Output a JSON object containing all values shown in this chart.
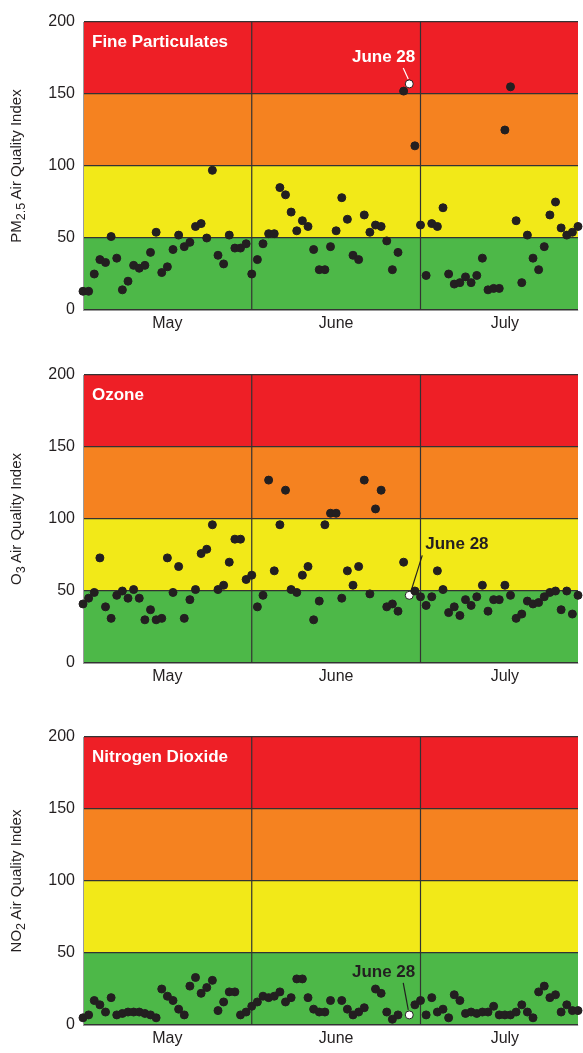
{
  "chart_data": [
    {
      "type": "scatter",
      "grid": "y",
      "title": "Fine Particulates",
      "ylabel": "PM$_{2.5}$ Air Quality Index",
      "marker": "circle",
      "x": [
        "--05-01",
        "--05-02",
        "--05-03",
        "--05-04",
        "--05-05",
        "--05-06",
        "--05-07",
        "--05-08",
        "--05-09",
        "--05-10",
        "--05-11",
        "--05-12",
        "--05-13",
        "--05-14",
        "--05-15",
        "--05-16",
        "--05-17",
        "--05-18",
        "--05-19",
        "--05-20",
        "--05-21",
        "--05-22",
        "--05-23",
        "--05-24",
        "--05-25",
        "--05-26",
        "--05-27",
        "--05-28",
        "--05-29",
        "--05-30",
        "--05-31",
        "--06-01",
        "--06-02",
        "--06-03",
        "--06-04",
        "--06-05",
        "--06-06",
        "--06-07",
        "--06-08",
        "--06-09",
        "--06-10",
        "--06-11",
        "--06-12",
        "--06-13",
        "--06-14",
        "--06-15",
        "--06-16",
        "--06-17",
        "--06-18",
        "--06-19",
        "--06-20",
        "--06-21",
        "--06-22",
        "--06-23",
        "--06-24",
        "--06-25",
        "--06-26",
        "--06-27",
        "--06-28",
        "--06-29",
        "--06-30",
        "--07-01",
        "--07-02",
        "--07-03",
        "--07-04",
        "--07-05",
        "--07-06",
        "--07-07",
        "--07-08",
        "--07-09",
        "--07-10",
        "--07-11",
        "--07-12",
        "--07-13",
        "--07-14",
        "--07-15",
        "--07-16",
        "--07-17",
        "--07-18",
        "--07-19",
        "--07-20",
        "--07-21",
        "--07-22",
        "--07-23",
        "--07-24",
        "--07-25",
        "--07-26",
        "--07-27",
        "--07-28"
      ],
      "series": [
        {
          "color": "#231f20",
          "values": [
            13,
            13,
            25,
            35,
            33,
            51,
            36,
            14,
            20,
            31,
            29,
            31,
            40,
            54,
            26,
            30,
            42,
            52,
            44,
            47,
            58,
            60,
            50,
            97,
            38,
            32,
            52,
            43,
            43,
            46,
            25,
            35,
            46,
            53,
            53,
            85,
            80,
            68,
            55,
            62,
            58,
            42,
            28,
            28,
            44,
            55,
            78,
            63,
            38,
            35,
            66,
            54,
            59,
            58,
            48,
            28,
            40,
            152,
            null,
            114,
            59,
            24,
            60,
            58,
            71,
            25,
            18,
            19,
            23,
            19,
            24,
            36,
            14,
            15,
            15,
            125,
            155,
            62,
            19,
            52,
            36,
            28,
            44,
            66,
            75,
            57,
            52,
            54,
            58
          ]
        },
        {
          "color": "#ffffff",
          "x": [
            "--06-28"
          ],
          "values": [
            157
          ]
        }
      ],
      "xlim": [
        "--05-01",
        "--07-28"
      ],
      "xticks": [
        {
          "value": "--05-16",
          "label": "May"
        },
        {
          "value": "--06-15",
          "label": "June"
        },
        {
          "value": "--07-15",
          "label": "July"
        }
      ],
      "ylim": [
        0,
        200
      ],
      "yticks": [
        0,
        50,
        100,
        150,
        200
      ],
      "bands": [
        {
          "axis": "y",
          "from": 0,
          "to": 50,
          "color": "#4db848"
        },
        {
          "axis": "y",
          "from": 50,
          "to": 100,
          "color": "#f2e918"
        },
        {
          "axis": "y",
          "from": 100,
          "to": 150,
          "color": "#f58220"
        },
        {
          "axis": "y",
          "from": 150,
          "to": 200,
          "color": "#ee1f26"
        }
      ],
      "ref_lines": [
        {
          "axis": "x",
          "value": "--05-31"
        },
        {
          "axis": "x",
          "value": "--06-30"
        }
      ],
      "annotations": [
        {
          "text": "June 28",
          "x": "--06-28",
          "y": 157
        }
      ]
    },
    {
      "type": "scatter",
      "grid": "y",
      "title": "Ozone",
      "ylabel": "O$_{3}$ Air Quality Index",
      "marker": "circle",
      "x": [
        "--05-01",
        "--05-02",
        "--05-03",
        "--05-04",
        "--05-05",
        "--05-06",
        "--05-07",
        "--05-08",
        "--05-09",
        "--05-10",
        "--05-11",
        "--05-12",
        "--05-13",
        "--05-14",
        "--05-15",
        "--05-16",
        "--05-17",
        "--05-18",
        "--05-19",
        "--05-20",
        "--05-21",
        "--05-22",
        "--05-23",
        "--05-24",
        "--05-25",
        "--05-26",
        "--05-27",
        "--05-28",
        "--05-29",
        "--05-30",
        "--05-31",
        "--06-01",
        "--06-02",
        "--06-03",
        "--06-04",
        "--06-05",
        "--06-06",
        "--06-07",
        "--06-08",
        "--06-09",
        "--06-10",
        "--06-11",
        "--06-12",
        "--06-13",
        "--06-14",
        "--06-15",
        "--06-16",
        "--06-17",
        "--06-18",
        "--06-19",
        "--06-20",
        "--06-21",
        "--06-22",
        "--06-23",
        "--06-24",
        "--06-25",
        "--06-26",
        "--06-27",
        "--06-28",
        "--06-29",
        "--06-30",
        "--07-01",
        "--07-02",
        "--07-03",
        "--07-04",
        "--07-05",
        "--07-06",
        "--07-07",
        "--07-08",
        "--07-09",
        "--07-10",
        "--07-11",
        "--07-12",
        "--07-13",
        "--07-14",
        "--07-15",
        "--07-16",
        "--07-17",
        "--07-18",
        "--07-19",
        "--07-20",
        "--07-21",
        "--07-22",
        "--07-23",
        "--07-24",
        "--07-25",
        "--07-26",
        "--07-27",
        "--07-28"
      ],
      "series": [
        {
          "color": "#231f20",
          "values": [
            41,
            45,
            49,
            73,
            39,
            31,
            47,
            50,
            45,
            51,
            45,
            30,
            37,
            30,
            31,
            73,
            49,
            67,
            31,
            44,
            51,
            76,
            79,
            96,
            51,
            54,
            70,
            86,
            86,
            58,
            61,
            39,
            47,
            127,
            64,
            96,
            120,
            51,
            49,
            61,
            67,
            30,
            43,
            96,
            104,
            104,
            45,
            64,
            54,
            67,
            127,
            48,
            107,
            120,
            39,
            41,
            36,
            70,
            null,
            50,
            46,
            40,
            46,
            64,
            51,
            35,
            39,
            33,
            44,
            40,
            46,
            54,
            36,
            44,
            44,
            54,
            47,
            31,
            34,
            43,
            41,
            42,
            46,
            49,
            50,
            37,
            50,
            34,
            47
          ]
        },
        {
          "color": "#ffffff",
          "x": [
            "--06-28"
          ],
          "values": [
            47
          ]
        }
      ],
      "xlim": [
        "--05-01",
        "--07-28"
      ],
      "xticks": [
        {
          "value": "--05-16",
          "label": "May"
        },
        {
          "value": "--06-15",
          "label": "June"
        },
        {
          "value": "--07-15",
          "label": "July"
        }
      ],
      "ylim": [
        0,
        200
      ],
      "yticks": [
        0,
        50,
        100,
        150,
        200
      ],
      "bands": [
        {
          "axis": "y",
          "from": 0,
          "to": 50,
          "color": "#4db848"
        },
        {
          "axis": "y",
          "from": 50,
          "to": 100,
          "color": "#f2e918"
        },
        {
          "axis": "y",
          "from": 100,
          "to": 150,
          "color": "#f58220"
        },
        {
          "axis": "y",
          "from": 150,
          "to": 200,
          "color": "#ee1f26"
        }
      ],
      "ref_lines": [
        {
          "axis": "x",
          "value": "--05-31"
        },
        {
          "axis": "x",
          "value": "--06-30"
        }
      ],
      "annotations": [
        {
          "text": "June 28",
          "x": "--06-28",
          "y": 47
        }
      ]
    },
    {
      "type": "scatter",
      "grid": "y",
      "title": "Nitrogen Dioxide",
      "ylabel": "NO$_{2}$ Air Quality Index",
      "marker": "circle",
      "x": [
        "--05-01",
        "--05-02",
        "--05-03",
        "--05-04",
        "--05-05",
        "--05-06",
        "--05-07",
        "--05-08",
        "--05-09",
        "--05-10",
        "--05-11",
        "--05-12",
        "--05-13",
        "--05-14",
        "--05-15",
        "--05-16",
        "--05-17",
        "--05-18",
        "--05-19",
        "--05-20",
        "--05-21",
        "--05-22",
        "--05-23",
        "--05-24",
        "--05-25",
        "--05-26",
        "--05-27",
        "--05-28",
        "--05-29",
        "--05-30",
        "--05-31",
        "--06-01",
        "--06-02",
        "--06-03",
        "--06-04",
        "--06-05",
        "--06-06",
        "--06-07",
        "--06-08",
        "--06-09",
        "--06-10",
        "--06-11",
        "--06-12",
        "--06-13",
        "--06-14",
        "--06-15",
        "--06-16",
        "--06-17",
        "--06-18",
        "--06-19",
        "--06-20",
        "--06-21",
        "--06-22",
        "--06-23",
        "--06-24",
        "--06-25",
        "--06-26",
        "--06-27",
        "--06-28",
        "--06-29",
        "--06-30",
        "--07-01",
        "--07-02",
        "--07-03",
        "--07-04",
        "--07-05",
        "--07-06",
        "--07-07",
        "--07-08",
        "--07-09",
        "--07-10",
        "--07-11",
        "--07-12",
        "--07-13",
        "--07-14",
        "--07-15",
        "--07-16",
        "--07-17",
        "--07-18",
        "--07-19",
        "--07-20",
        "--07-21",
        "--07-22",
        "--07-23",
        "--07-24",
        "--07-25",
        "--07-26",
        "--07-27",
        "--07-28"
      ],
      "series": [
        {
          "color": "#231f20",
          "values": [
            5,
            7,
            17,
            14,
            9,
            19,
            7,
            8,
            9,
            9,
            9,
            8,
            7,
            5,
            25,
            20,
            17,
            11,
            7,
            27,
            33,
            22,
            26,
            31,
            10,
            16,
            23,
            23,
            7,
            9,
            13,
            16,
            20,
            19,
            20,
            23,
            16,
            19,
            32,
            32,
            19,
            11,
            9,
            9,
            17,
            null,
            17,
            11,
            7,
            9,
            12,
            null,
            25,
            22,
            9,
            4,
            7,
            null,
            null,
            14,
            17,
            7,
            19,
            9,
            11,
            5,
            21,
            17,
            8,
            9,
            8,
            9,
            9,
            13,
            7,
            7,
            7,
            9,
            14,
            9,
            5,
            23,
            27,
            19,
            21,
            9,
            14,
            10,
            10
          ]
        },
        {
          "color": "#ffffff",
          "x": [
            "--06-28"
          ],
          "values": [
            7
          ]
        }
      ],
      "xlim": [
        "--05-01",
        "--07-28"
      ],
      "xticks": [
        {
          "value": "--05-16",
          "label": "May"
        },
        {
          "value": "--06-15",
          "label": "June"
        },
        {
          "value": "--07-15",
          "label": "July"
        }
      ],
      "ylim": [
        0,
        200
      ],
      "yticks": [
        0,
        50,
        100,
        150,
        200
      ],
      "bands": [
        {
          "axis": "y",
          "from": 0,
          "to": 50,
          "color": "#4db848"
        },
        {
          "axis": "y",
          "from": 50,
          "to": 100,
          "color": "#f2e918"
        },
        {
          "axis": "y",
          "from": 100,
          "to": 150,
          "color": "#f58220"
        },
        {
          "axis": "y",
          "from": 150,
          "to": 200,
          "color": "#ee1f26"
        }
      ],
      "ref_lines": [
        {
          "axis": "x",
          "value": "--05-31"
        },
        {
          "axis": "x",
          "value": "--06-30"
        }
      ],
      "annotations": [
        {
          "text": "June 28",
          "x": "--06-28",
          "y": 7
        }
      ]
    }
  ]
}
